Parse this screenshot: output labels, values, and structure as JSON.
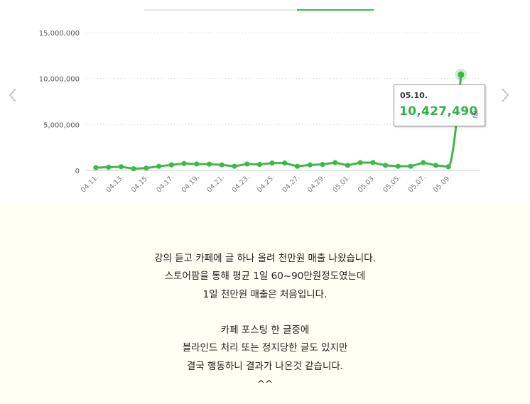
{
  "chart_data": {
    "type": "line",
    "y_ticks": [
      "15,000,000",
      "10,000,000",
      "5,000,000",
      "0"
    ],
    "y_tick_values": [
      15000000,
      10000000,
      5000000,
      0
    ],
    "ylim": [
      0,
      15000000
    ],
    "x_tick_labels": [
      "04.11.",
      "04.13.",
      "04.15.",
      "04.17.",
      "04.19.",
      "04.21.",
      "04.23.",
      "04.25.",
      "04.27.",
      "04.29.",
      "05.01.",
      "05.03.",
      "05.05.",
      "05.07.",
      "05.09."
    ],
    "categories": [
      "04.11.",
      "04.12.",
      "04.13.",
      "04.14.",
      "04.15.",
      "04.16.",
      "04.17.",
      "04.18.",
      "04.19.",
      "04.20.",
      "04.21.",
      "04.22.",
      "04.23.",
      "04.24.",
      "04.25.",
      "04.26.",
      "04.27.",
      "04.28.",
      "04.29.",
      "04.30.",
      "05.01.",
      "05.02.",
      "05.03.",
      "05.04.",
      "05.05.",
      "05.06.",
      "05.07.",
      "05.08.",
      "05.09.",
      "05.10."
    ],
    "values": [
      300000,
      350000,
      400000,
      180000,
      250000,
      450000,
      600000,
      750000,
      700000,
      680000,
      600000,
      450000,
      700000,
      650000,
      800000,
      800000,
      450000,
      600000,
      650000,
      850000,
      550000,
      850000,
      850000,
      550000,
      450000,
      450000,
      850000,
      550000,
      400000,
      10427490
    ],
    "grid": true,
    "highlight": {
      "date": "05.10.",
      "value_label": "10,427,490",
      "unit": "원"
    },
    "colors": {
      "line": "#3cb94a",
      "grid": "#d8d8d8",
      "tooltip_value": "#2db34a"
    }
  },
  "post": {
    "lines": [
      "강의 듣고 카페에 글 하나 올려 천만원 매출 나왔습니다.",
      "스토어팜을 통해 평균 1일 60~90만원정도였는데",
      "1일 천만원 매출은 처음입니다.",
      "",
      "카페 포스팅 한 글중에",
      "블라인드 처리 또는 정지당한 글도 있지만",
      "결국 행동하니 결과가 나온것 같습니다.",
      "^^"
    ]
  },
  "icons": {
    "prev": "chevron-left-icon",
    "next": "chevron-right-icon"
  }
}
